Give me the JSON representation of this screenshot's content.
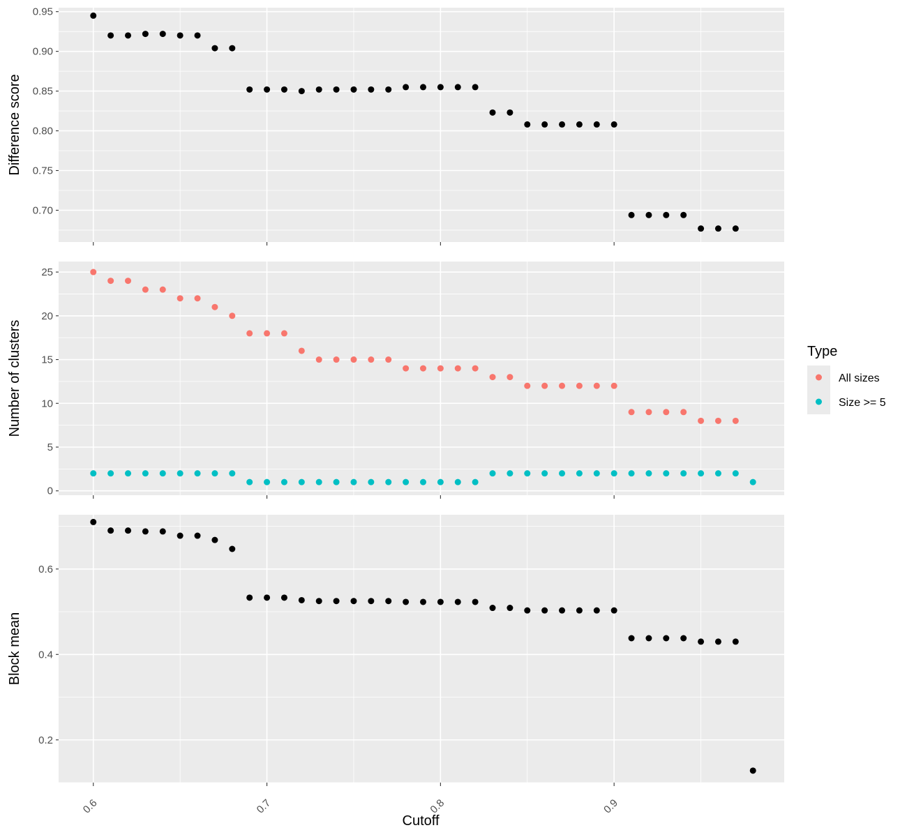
{
  "chart_data": {
    "type": "scatter",
    "xlabel": "Cutoff",
    "x_ticks": [
      "0.6",
      "0.7",
      "0.8",
      "0.9"
    ],
    "xlim": [
      0.58,
      0.998
    ],
    "legend": {
      "title": "Type",
      "placement": "right",
      "entries": [
        {
          "label": "All sizes",
          "color": "#F8766D"
        },
        {
          "label": "Size >= 5",
          "color": "#00BFC4"
        }
      ]
    },
    "panels": [
      {
        "ylabel": "Difference score",
        "ylim": [
          0.66,
          0.955
        ],
        "y_ticks": [
          "0.70",
          "0.75",
          "0.80",
          "0.85",
          "0.90",
          "0.95"
        ],
        "grid": true,
        "series": [
          {
            "color": "#000000",
            "x": [
              0.6,
              0.61,
              0.62,
              0.63,
              0.64,
              0.65,
              0.66,
              0.67,
              0.68,
              0.69,
              0.7,
              0.71,
              0.72,
              0.73,
              0.74,
              0.75,
              0.76,
              0.77,
              0.78,
              0.79,
              0.8,
              0.81,
              0.82,
              0.83,
              0.84,
              0.85,
              0.86,
              0.87,
              0.88,
              0.89,
              0.9,
              0.91,
              0.92,
              0.93,
              0.94,
              0.95,
              0.96,
              0.97
            ],
            "y": [
              0.945,
              0.92,
              0.92,
              0.922,
              0.922,
              0.92,
              0.92,
              0.904,
              0.904,
              0.852,
              0.852,
              0.852,
              0.85,
              0.852,
              0.852,
              0.852,
              0.852,
              0.852,
              0.855,
              0.855,
              0.855,
              0.855,
              0.855,
              0.823,
              0.823,
              0.808,
              0.808,
              0.808,
              0.808,
              0.808,
              0.808,
              0.694,
              0.694,
              0.694,
              0.694,
              0.677,
              0.677,
              0.677
            ]
          }
        ]
      },
      {
        "ylabel": "Number of clusters",
        "ylim": [
          -0.5,
          26.2
        ],
        "y_ticks": [
          "0",
          "5",
          "10",
          "15",
          "20",
          "25"
        ],
        "grid": true,
        "series": [
          {
            "name": "All sizes",
            "color": "#F8766D",
            "x": [
              0.6,
              0.61,
              0.62,
              0.63,
              0.64,
              0.65,
              0.66,
              0.67,
              0.68,
              0.69,
              0.7,
              0.71,
              0.72,
              0.73,
              0.74,
              0.75,
              0.76,
              0.77,
              0.78,
              0.79,
              0.8,
              0.81,
              0.82,
              0.83,
              0.84,
              0.85,
              0.86,
              0.87,
              0.88,
              0.89,
              0.9,
              0.91,
              0.92,
              0.93,
              0.94,
              0.95,
              0.96,
              0.97
            ],
            "y": [
              25,
              24,
              24,
              23,
              23,
              22,
              22,
              21,
              20,
              18,
              18,
              18,
              16,
              15,
              15,
              15,
              15,
              15,
              14,
              14,
              14,
              14,
              14,
              13,
              13,
              12,
              12,
              12,
              12,
              12,
              12,
              9,
              9,
              9,
              9,
              8,
              8,
              8
            ]
          },
          {
            "name": "Size >= 5",
            "color": "#00BFC4",
            "x": [
              0.6,
              0.61,
              0.62,
              0.63,
              0.64,
              0.65,
              0.66,
              0.67,
              0.68,
              0.69,
              0.7,
              0.71,
              0.72,
              0.73,
              0.74,
              0.75,
              0.76,
              0.77,
              0.78,
              0.79,
              0.8,
              0.81,
              0.82,
              0.83,
              0.84,
              0.85,
              0.86,
              0.87,
              0.88,
              0.89,
              0.9,
              0.91,
              0.92,
              0.93,
              0.94,
              0.95,
              0.96,
              0.97,
              0.98
            ],
            "y": [
              2,
              2,
              2,
              2,
              2,
              2,
              2,
              2,
              2,
              1,
              1,
              1,
              1,
              1,
              1,
              1,
              1,
              1,
              1,
              1,
              1,
              1,
              1,
              2,
              2,
              2,
              2,
              2,
              2,
              2,
              2,
              2,
              2,
              2,
              2,
              2,
              2,
              2,
              1
            ]
          }
        ]
      },
      {
        "ylabel": "Block mean",
        "ylim": [
          0.1,
          0.727
        ],
        "y_ticks": [
          "0.2",
          "0.4",
          "0.6"
        ],
        "grid": true,
        "series": [
          {
            "color": "#000000",
            "x": [
              0.6,
              0.61,
              0.62,
              0.63,
              0.64,
              0.65,
              0.66,
              0.67,
              0.68,
              0.69,
              0.7,
              0.71,
              0.72,
              0.73,
              0.74,
              0.75,
              0.76,
              0.77,
              0.78,
              0.79,
              0.8,
              0.81,
              0.82,
              0.83,
              0.84,
              0.85,
              0.86,
              0.87,
              0.88,
              0.89,
              0.9,
              0.91,
              0.92,
              0.93,
              0.94,
              0.95,
              0.96,
              0.97,
              0.98
            ],
            "y": [
              0.71,
              0.69,
              0.69,
              0.688,
              0.688,
              0.678,
              0.678,
              0.668,
              0.647,
              0.533,
              0.533,
              0.533,
              0.527,
              0.525,
              0.525,
              0.525,
              0.525,
              0.525,
              0.523,
              0.523,
              0.523,
              0.523,
              0.523,
              0.509,
              0.509,
              0.503,
              0.503,
              0.503,
              0.503,
              0.503,
              0.503,
              0.438,
              0.438,
              0.438,
              0.438,
              0.43,
              0.43,
              0.43,
              0.128
            ]
          }
        ]
      }
    ]
  }
}
